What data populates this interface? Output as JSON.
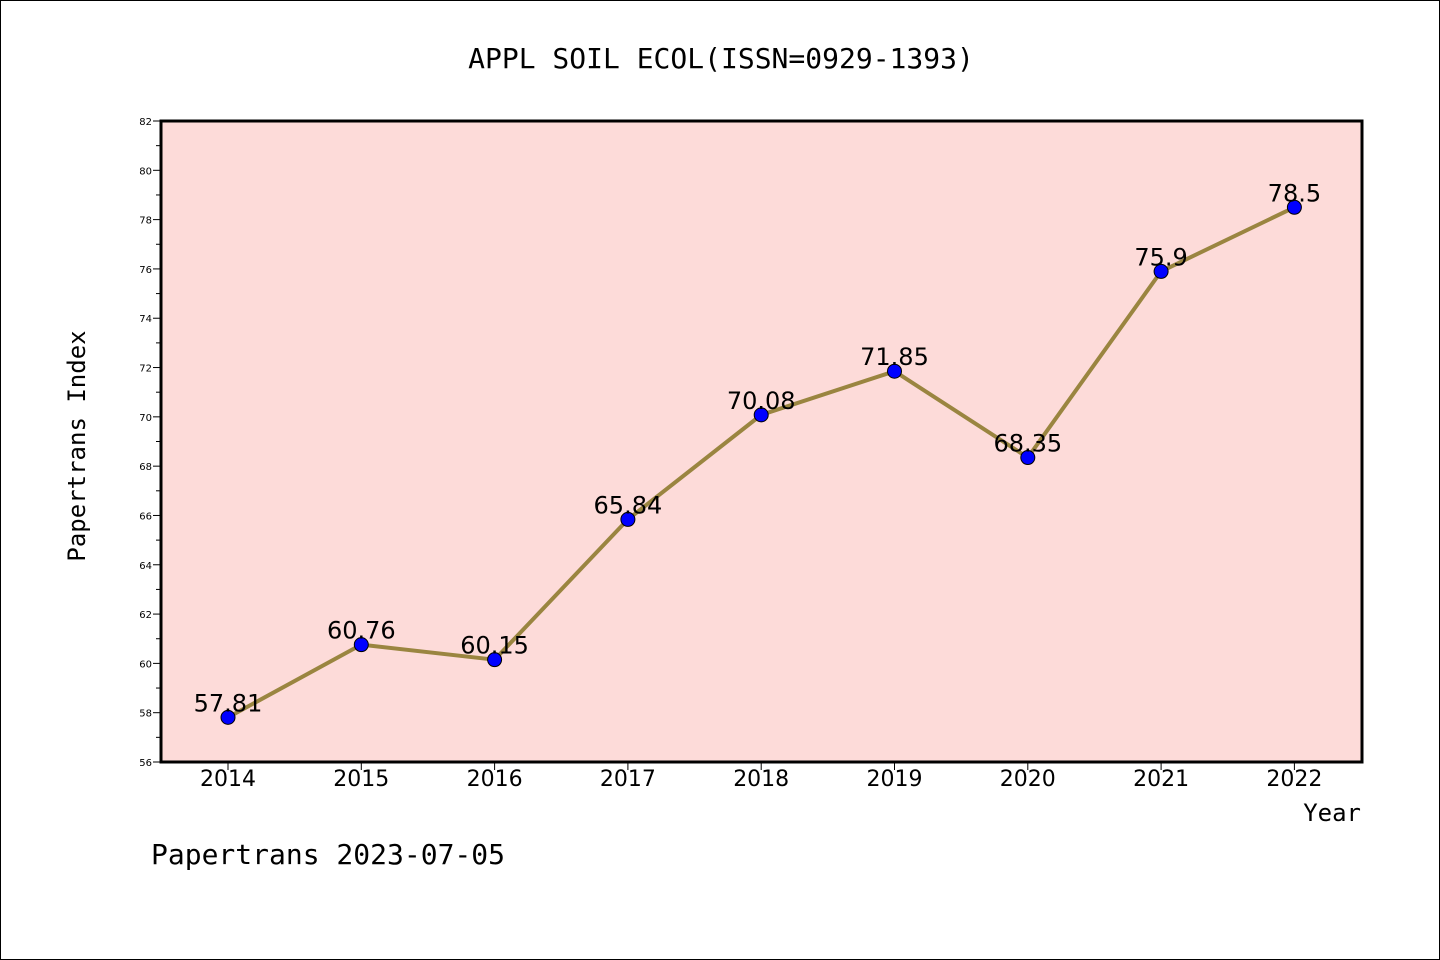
{
  "chart_data": {
    "type": "line",
    "title": "APPL SOIL ECOL(ISSN=0929-1393)",
    "xlabel": "Year",
    "ylabel": "Papertrans Index",
    "categories": [
      "2014",
      "2015",
      "2016",
      "2017",
      "2018",
      "2019",
      "2020",
      "2021",
      "2022"
    ],
    "series": [
      {
        "values": [
          57.81,
          60.76,
          60.15,
          65.84,
          70.08,
          71.85,
          68.35,
          75.9,
          78.5
        ],
        "labels": [
          "57.81",
          "60.76",
          "60.15",
          "65.84",
          "70.08",
          "71.85",
          "68.35",
          "75.9",
          "78.5"
        ]
      }
    ],
    "ylim": [
      56,
      82
    ],
    "y_ticks": [
      "56",
      "58",
      "60",
      "62",
      "64",
      "66",
      "68",
      "70",
      "72",
      "74",
      "76",
      "78",
      "80",
      "82"
    ],
    "grid": false,
    "colors": {
      "plot_background": "#fddbd9",
      "line": "#9a8540",
      "marker": "#0000ff"
    }
  },
  "footer": "Papertrans 2023-07-05"
}
